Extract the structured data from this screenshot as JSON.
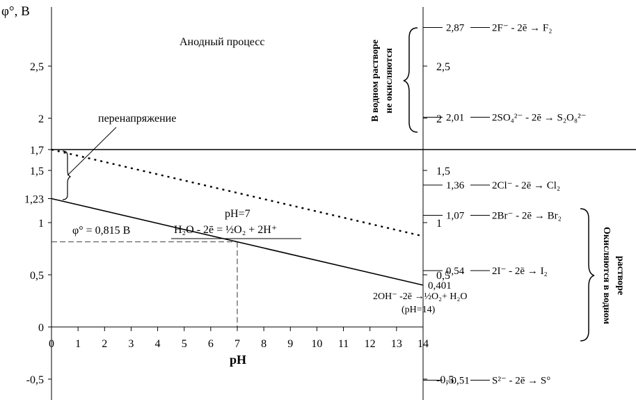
{
  "chart_data": {
    "type": "line",
    "title": "",
    "ylabel": "φ°, В",
    "xlabel": "pH",
    "xlim": [
      0,
      14
    ],
    "ylim": [
      -0.7,
      3.05
    ],
    "x_ticks": [
      "0",
      "1",
      "2",
      "3",
      "4",
      "5",
      "6",
      "7",
      "8",
      "9",
      "10",
      "11",
      "12",
      "13",
      "14"
    ],
    "y_ticks": [
      "-0,5",
      "0",
      "0,5",
      "1",
      "1,5",
      "2",
      "2,5"
    ],
    "grid": false,
    "series": [
      {
        "x": [
          0,
          14
        ],
        "y": [
          1.23,
          0.401
        ],
        "style": "solid"
      },
      {
        "x": [
          0,
          14
        ],
        "y": [
          1.7,
          0.87
        ],
        "style": "dotted"
      }
    ],
    "horizontal_line": {
      "y": 1.7,
      "label": "1,7"
    },
    "y_tick_1_23": "1,23",
    "point_ph7": {
      "x": 7,
      "y": 0.815,
      "ph_label": "pH=7",
      "phi_label": "φ° = 0,815 В"
    },
    "equation_main": "H₂O - 2ē =  ½O₂ + 2H⁺",
    "end_value": "0,401",
    "end_equation": "2OH⁻ -2ē →½O₂+ H₂O",
    "end_ph": "(pH=14)",
    "anode_title": "Анодный процесс",
    "overpotential_label": "перенапряжение",
    "right_axis": {
      "ticks": [
        "-0,5",
        "0,5",
        "1",
        "1,5",
        "2",
        "2,5"
      ],
      "reactions": [
        {
          "value": 2.87,
          "value_label": "2,87",
          "equation": "2F⁻ - 2ē → F₂"
        },
        {
          "value": 2.01,
          "value_label": "2,01",
          "equation": "2SO₄²⁻ - 2ē →  S₂O₈²⁻"
        },
        {
          "value": 1.36,
          "value_label": "1,36",
          "equation": "2Cl⁻ - 2ē → Cl₂"
        },
        {
          "value": 1.07,
          "value_label": "1,07",
          "equation": "2Br⁻ - 2ē → Br₂"
        },
        {
          "value": 0.54,
          "value_label": "0,54",
          "equation": "2I⁻ - 2ē → I₂"
        },
        {
          "value": -0.51,
          "value_label": "–0,51",
          "equation": "S²⁻ - 2ē → S°"
        }
      ],
      "group_top_line1": "В водном растворе",
      "group_top_line2": "не окисляются",
      "group_bottom_line1": "Окисляются в водном",
      "group_bottom_line2": "растворе"
    },
    "colors": {
      "ink": "#000000",
      "background": "#ffffff"
    }
  }
}
